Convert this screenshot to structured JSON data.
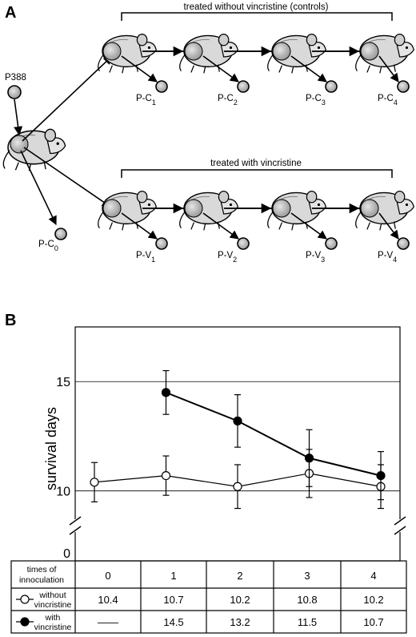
{
  "panel_a": {
    "letter": "A",
    "source_label": "P388",
    "bracket_controls": "treated without vincristine (controls)",
    "bracket_vincristine": "treated with vincristine",
    "passage_labels_controls": [
      {
        "base": "P-C",
        "sub": "1"
      },
      {
        "base": "P-C",
        "sub": "2"
      },
      {
        "base": "P-C",
        "sub": "3"
      },
      {
        "base": "P-C",
        "sub": "4"
      }
    ],
    "passage_labels_vincristine": [
      {
        "base": "P-V",
        "sub": "1"
      },
      {
        "base": "P-V",
        "sub": "2"
      },
      {
        "base": "P-V",
        "sub": "3"
      },
      {
        "base": "P-V",
        "sub": "4"
      }
    ],
    "passage_label_origin": {
      "base": "P-C",
      "sub": "0"
    }
  },
  "panel_b": {
    "letter": "B",
    "ylabel": "survival days",
    "table": {
      "header_label": [
        "times of",
        "innoculation"
      ],
      "columns": [
        "0",
        "1",
        "2",
        "3",
        "4"
      ],
      "rows": [
        {
          "label": [
            "without",
            "vincristine"
          ],
          "marker": "open",
          "values": [
            "10.4",
            "10.7",
            "10.2",
            "10.8",
            "10.2"
          ]
        },
        {
          "label": [
            "with",
            "vincristine"
          ],
          "marker": "filled",
          "values": [
            "——",
            "14.5",
            "13.2",
            "11.5",
            "10.7"
          ]
        }
      ]
    }
  },
  "chart_data": {
    "type": "line",
    "x": [
      0,
      1,
      2,
      3,
      4
    ],
    "ylabel": "survival days",
    "yticks": [
      0,
      10,
      15
    ],
    "axis_break": true,
    "ylim": [
      9,
      17.5
    ],
    "grid": "horizontal at 10 and 15",
    "series": [
      {
        "name": "without vincristine",
        "marker": "open-circle",
        "color": "#000000",
        "values": [
          10.4,
          10.7,
          10.2,
          10.8,
          10.2
        ],
        "error": [
          0.9,
          0.9,
          1.0,
          1.1,
          1.0
        ]
      },
      {
        "name": "with vincristine",
        "marker": "filled-circle",
        "color": "#000000",
        "values": [
          null,
          14.5,
          13.2,
          11.5,
          10.7
        ],
        "error": [
          null,
          1.0,
          1.2,
          1.3,
          1.1
        ]
      }
    ]
  }
}
